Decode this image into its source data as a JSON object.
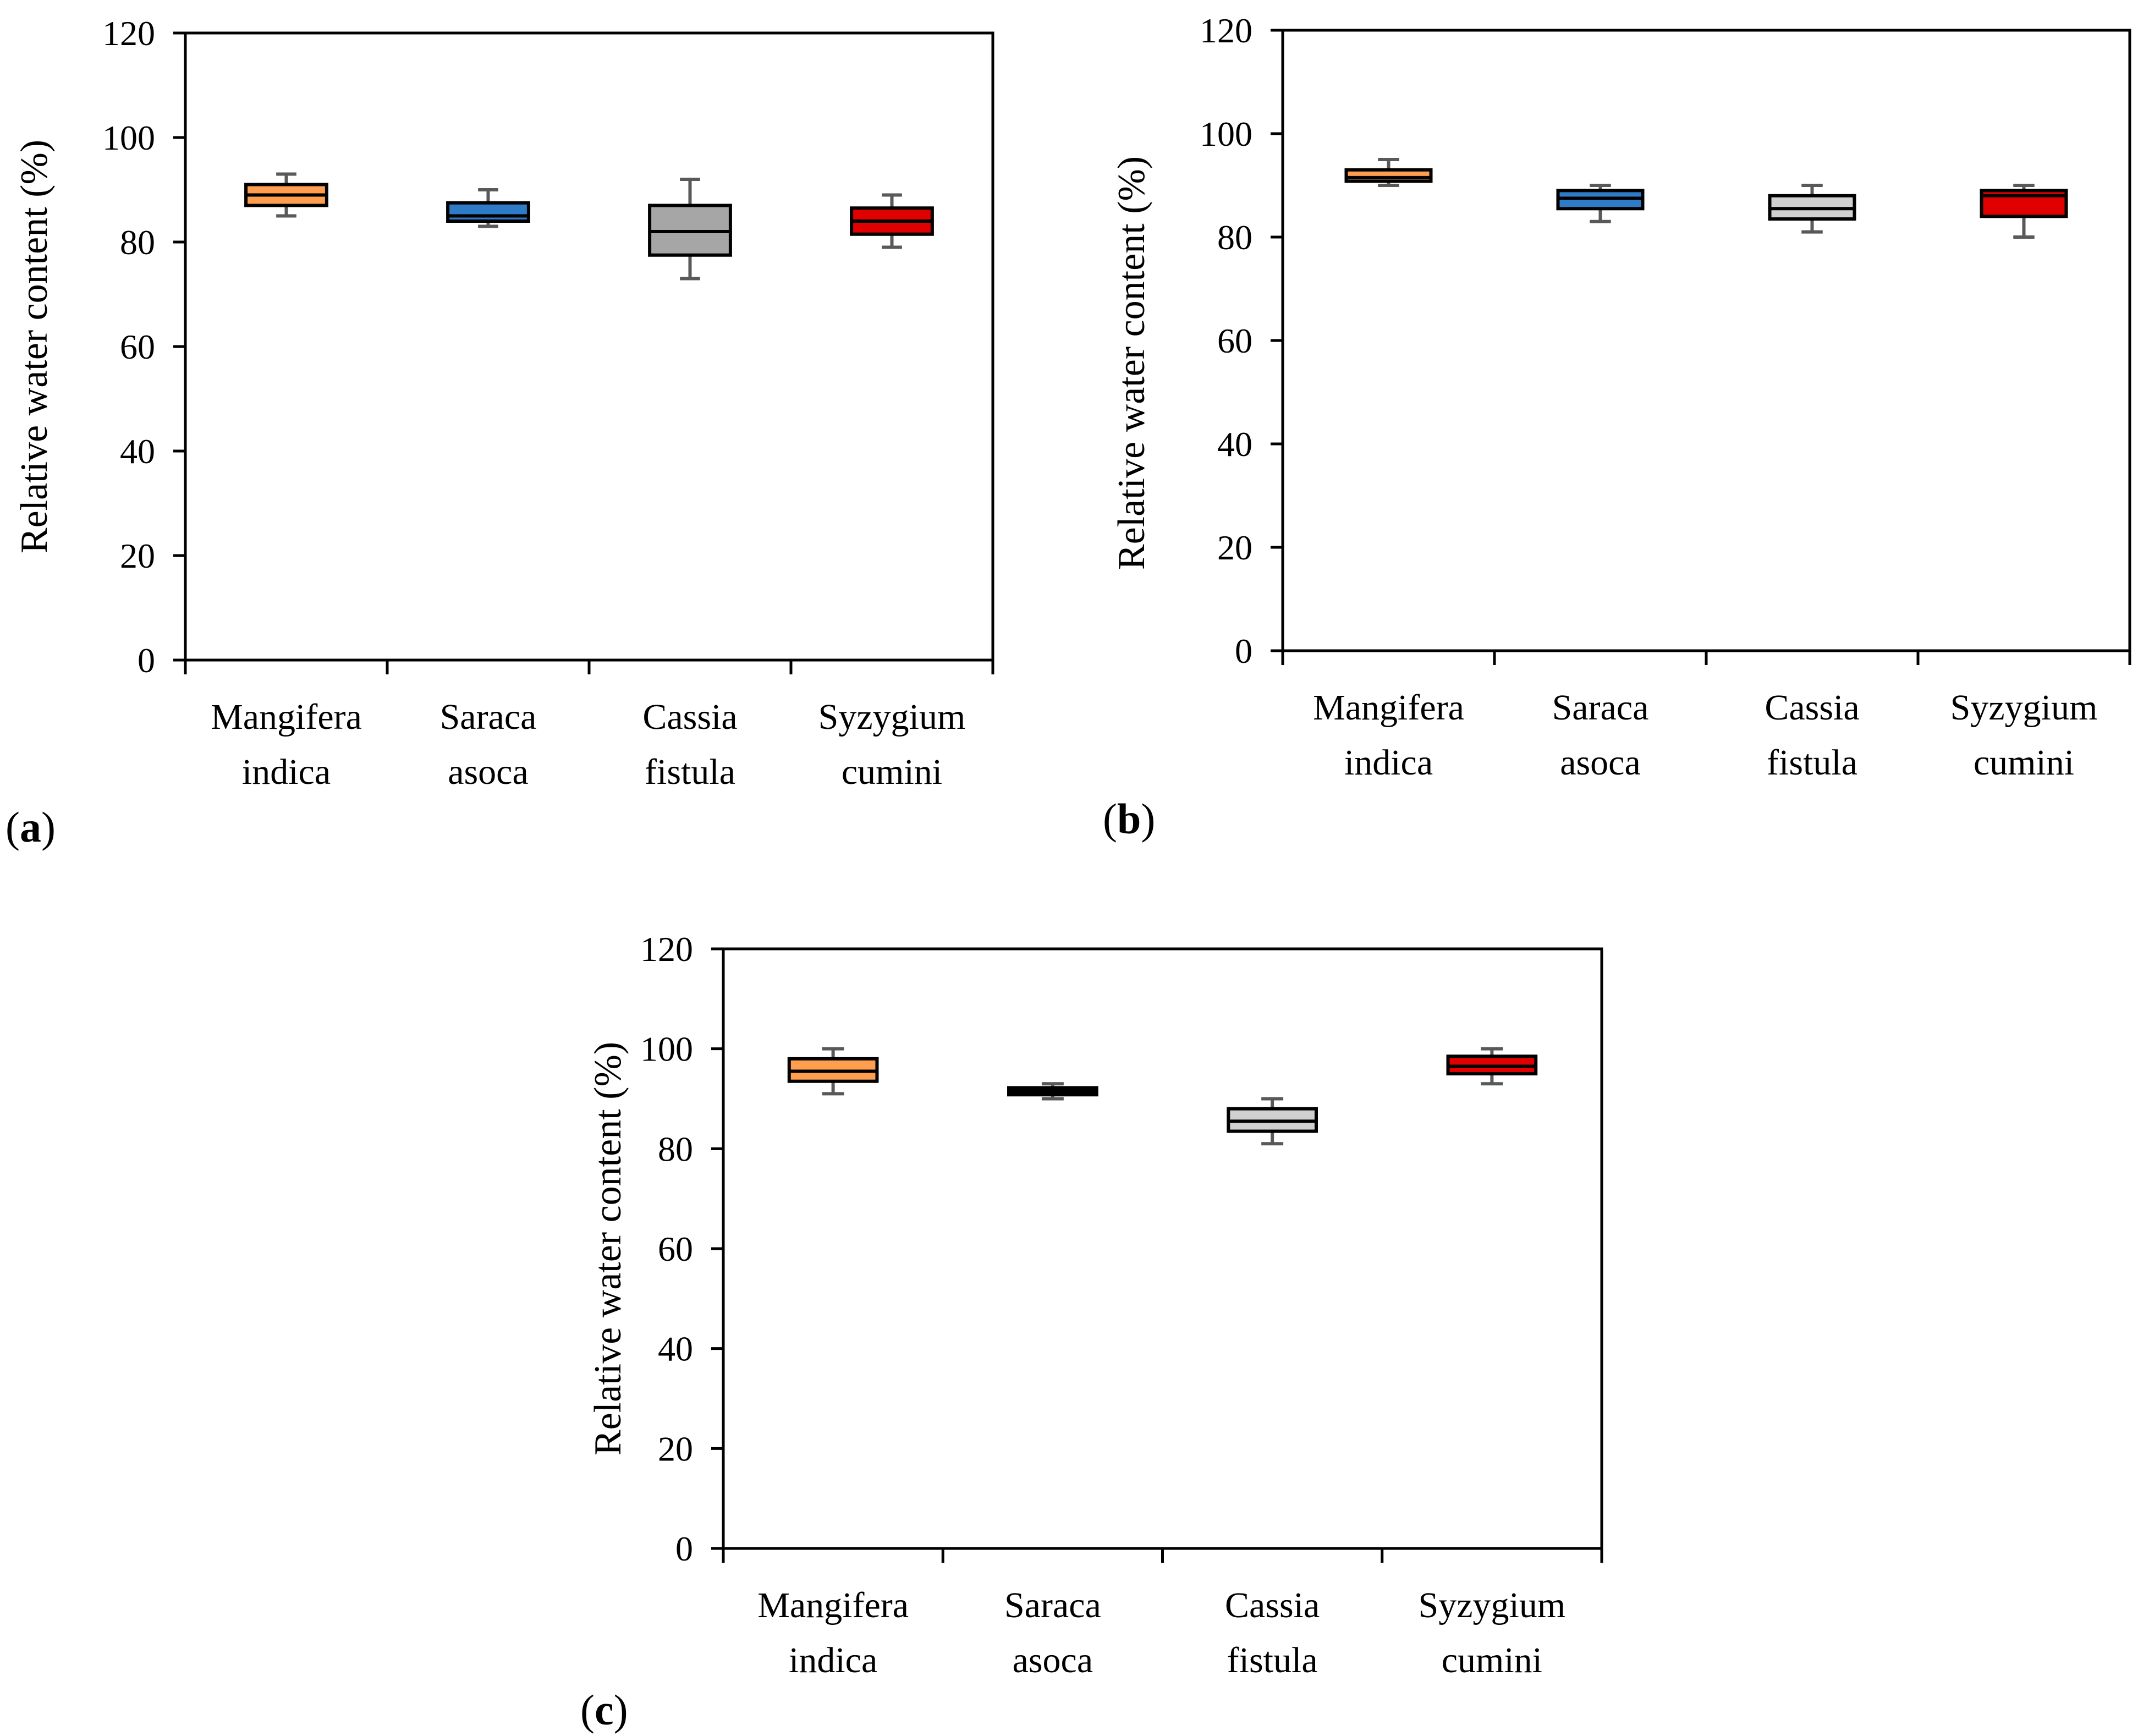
{
  "figure": {
    "colors": {
      "orange": "#FF9E4F",
      "blue": "#2E7BC8",
      "gray_dark": "#A6A6A6",
      "gray_light": "#D0D0D0",
      "red": "#E00000",
      "black": "#000000",
      "whisker": "#595959"
    }
  },
  "chart_data": [
    {
      "type": "boxplot",
      "panel": "(a)",
      "panel_letter": "a",
      "paren_open": "(",
      "paren_close": ")",
      "ylabel": "Relative water content (%)",
      "xlabel": "",
      "ylim": [
        0,
        120
      ],
      "yticks": [
        "0",
        "20",
        "40",
        "60",
        "80",
        "100",
        "120"
      ],
      "categories": [
        {
          "line1": "Mangifera",
          "line2": "indica"
        },
        {
          "line1": "Saraca",
          "line2": "asoca"
        },
        {
          "line1": "Cassia",
          "line2": "fistula"
        },
        {
          "line1": "Syzygium",
          "line2": "cumini"
        }
      ],
      "boxes": [
        {
          "min": 85,
          "q1": 87,
          "median": 89,
          "q3": 91,
          "max": 93,
          "color": "#FF9E4F"
        },
        {
          "min": 83,
          "q1": 84,
          "median": 85,
          "q3": 87.5,
          "max": 90,
          "color": "#2E7BC8"
        },
        {
          "min": 73,
          "q1": 77.5,
          "median": 82,
          "q3": 87,
          "max": 92,
          "color": "#A6A6A6"
        },
        {
          "min": 79,
          "q1": 81.5,
          "median": 84,
          "q3": 86.5,
          "max": 89,
          "color": "#E00000"
        }
      ]
    },
    {
      "type": "boxplot",
      "panel": "(b)",
      "panel_letter": "b",
      "paren_open": "(",
      "paren_close": ")",
      "ylabel": "Relative water content (%)",
      "xlabel": "",
      "ylim": [
        0,
        120
      ],
      "yticks": [
        "0",
        "20",
        "40",
        "60",
        "80",
        "100",
        "120"
      ],
      "categories": [
        {
          "line1": "Mangifera",
          "line2": "indica"
        },
        {
          "line1": "Saraca",
          "line2": "asoca"
        },
        {
          "line1": "Cassia",
          "line2": "fistula"
        },
        {
          "line1": "Syzygium",
          "line2": "cumini"
        }
      ],
      "boxes": [
        {
          "min": 90,
          "q1": 90.8,
          "median": 91.5,
          "q3": 93,
          "max": 95,
          "color": "#FF9E4F"
        },
        {
          "min": 83,
          "q1": 85.5,
          "median": 87.5,
          "q3": 89,
          "max": 90,
          "color": "#2E7BC8"
        },
        {
          "min": 81,
          "q1": 83.5,
          "median": 85.5,
          "q3": 88,
          "max": 90,
          "color": "#D0D0D0"
        },
        {
          "min": 80,
          "q1": 84,
          "median": 88,
          "q3": 89,
          "max": 90,
          "color": "#E00000"
        }
      ]
    },
    {
      "type": "boxplot",
      "panel": "(c)",
      "panel_letter": "c",
      "paren_open": "(",
      "paren_close": ")",
      "ylabel": "Relative water content (%)",
      "xlabel": "",
      "ylim": [
        0,
        120
      ],
      "yticks": [
        "0",
        "20",
        "40",
        "60",
        "80",
        "100",
        "120"
      ],
      "categories": [
        {
          "line1": "Mangifera",
          "line2": "indica"
        },
        {
          "line1": "Saraca",
          "line2": "asoca"
        },
        {
          "line1": "Cassia",
          "line2": "fistula"
        },
        {
          "line1": "Syzygium",
          "line2": "cumini"
        }
      ],
      "boxes": [
        {
          "min": 91,
          "q1": 93.5,
          "median": 95.5,
          "q3": 98,
          "max": 100,
          "color": "#FF9E4F"
        },
        {
          "min": 90,
          "q1": 90.8,
          "median": 91.5,
          "q3": 92.2,
          "max": 93,
          "color": "#000000"
        },
        {
          "min": 81,
          "q1": 83.5,
          "median": 85.5,
          "q3": 88,
          "max": 90,
          "color": "#D0D0D0"
        },
        {
          "min": 93,
          "q1": 95,
          "median": 96.5,
          "q3": 98.5,
          "max": 100,
          "color": "#E00000"
        }
      ]
    }
  ]
}
